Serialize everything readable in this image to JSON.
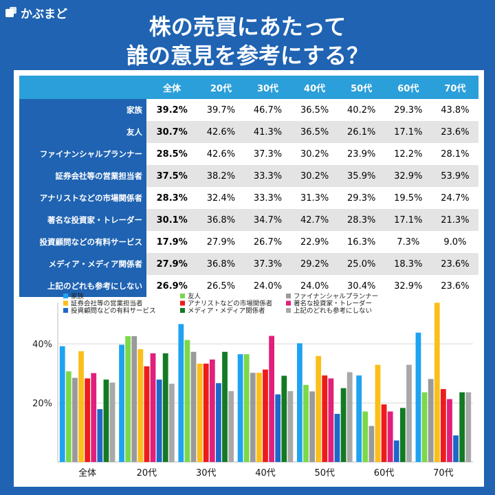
{
  "brand": "かぶまど",
  "title": [
    "株の売買にあたって",
    "誰の意見を参考にする？"
  ],
  "table": {
    "headers": [
      "全体",
      "20代",
      "30代",
      "40代",
      "50代",
      "60代",
      "70代"
    ],
    "rows": [
      {
        "label": "家族",
        "values": [
          "39.2%",
          "39.7%",
          "46.7%",
          "36.5%",
          "40.2%",
          "29.3%",
          "43.8%"
        ]
      },
      {
        "label": "友人",
        "values": [
          "30.7%",
          "42.6%",
          "41.3%",
          "36.5%",
          "26.1%",
          "17.1%",
          "23.6%"
        ]
      },
      {
        "label": "ファイナンシャルプランナー",
        "values": [
          "28.5%",
          "42.6%",
          "37.3%",
          "30.2%",
          "23.9%",
          "12.2%",
          "28.1%"
        ]
      },
      {
        "label": "証券会社等の営業担当者",
        "values": [
          "37.5%",
          "38.2%",
          "33.3%",
          "30.2%",
          "35.9%",
          "32.9%",
          "53.9%"
        ]
      },
      {
        "label": "アナリストなどの市場関係者",
        "values": [
          "28.3%",
          "32.4%",
          "33.3%",
          "31.3%",
          "29.3%",
          "19.5%",
          "24.7%"
        ]
      },
      {
        "label": "著名な投資家・トレーダー",
        "values": [
          "30.1%",
          "36.8%",
          "34.7%",
          "42.7%",
          "28.3%",
          "17.1%",
          "21.3%"
        ]
      },
      {
        "label": "投資顧問などの有料サービス",
        "values": [
          "17.9%",
          "27.9%",
          "26.7%",
          "22.9%",
          "16.3%",
          "7.3%",
          "9.0%"
        ]
      },
      {
        "label": "メディア・メディア関係者",
        "values": [
          "27.9%",
          "36.8%",
          "37.3%",
          "29.2%",
          "25.0%",
          "18.3%",
          "23.6%"
        ]
      },
      {
        "label": "上記のどれも参考にしない",
        "values": [
          "26.9%",
          "26.5%",
          "24.0%",
          "24.0%",
          "30.4%",
          "32.9%",
          "23.6%"
        ]
      }
    ]
  },
  "chart_data": {
    "type": "bar",
    "categories": [
      "全体",
      "20代",
      "30代",
      "40代",
      "50代",
      "60代",
      "70代"
    ],
    "series": [
      {
        "name": "家族",
        "color": "#1fa3f0",
        "values": [
          39.2,
          39.7,
          46.7,
          36.5,
          40.2,
          29.3,
          43.8
        ]
      },
      {
        "name": "友人",
        "color": "#7bd84a",
        "values": [
          30.7,
          42.6,
          41.3,
          36.5,
          26.1,
          17.1,
          23.6
        ]
      },
      {
        "name": "ファイナンシャルプランナー",
        "color": "#9a9a9a",
        "values": [
          28.5,
          42.6,
          37.3,
          30.2,
          23.9,
          12.2,
          28.1
        ]
      },
      {
        "name": "証券会社等の営業担当者",
        "color": "#fbbf1a",
        "values": [
          37.5,
          38.2,
          33.3,
          30.2,
          35.9,
          32.9,
          53.9
        ]
      },
      {
        "name": "アナリストなどの市場関係者",
        "color": "#ee1b1b",
        "values": [
          28.3,
          32.4,
          33.3,
          31.3,
          29.3,
          19.5,
          24.7
        ]
      },
      {
        "name": "著名な投資家・トレーダー",
        "color": "#e0207a",
        "values": [
          30.1,
          36.8,
          34.7,
          42.7,
          28.3,
          17.1,
          21.3
        ]
      },
      {
        "name": "投資顧問などの有料サービス",
        "color": "#1d68c8",
        "values": [
          17.9,
          27.9,
          26.7,
          22.9,
          16.3,
          7.3,
          9.0
        ]
      },
      {
        "name": "メディア・メディア関係者",
        "color": "#137a24",
        "values": [
          27.9,
          36.8,
          37.3,
          29.2,
          25.0,
          18.3,
          23.6
        ]
      },
      {
        "name": "上記のどれも参考にしない",
        "color": "#a8a8a8",
        "values": [
          26.9,
          26.5,
          24.0,
          24.0,
          30.4,
          32.9,
          23.6
        ]
      }
    ],
    "yticks": [
      "20%",
      "40%"
    ],
    "ylim": [
      0,
      54
    ],
    "grid": true,
    "legend": "top"
  }
}
